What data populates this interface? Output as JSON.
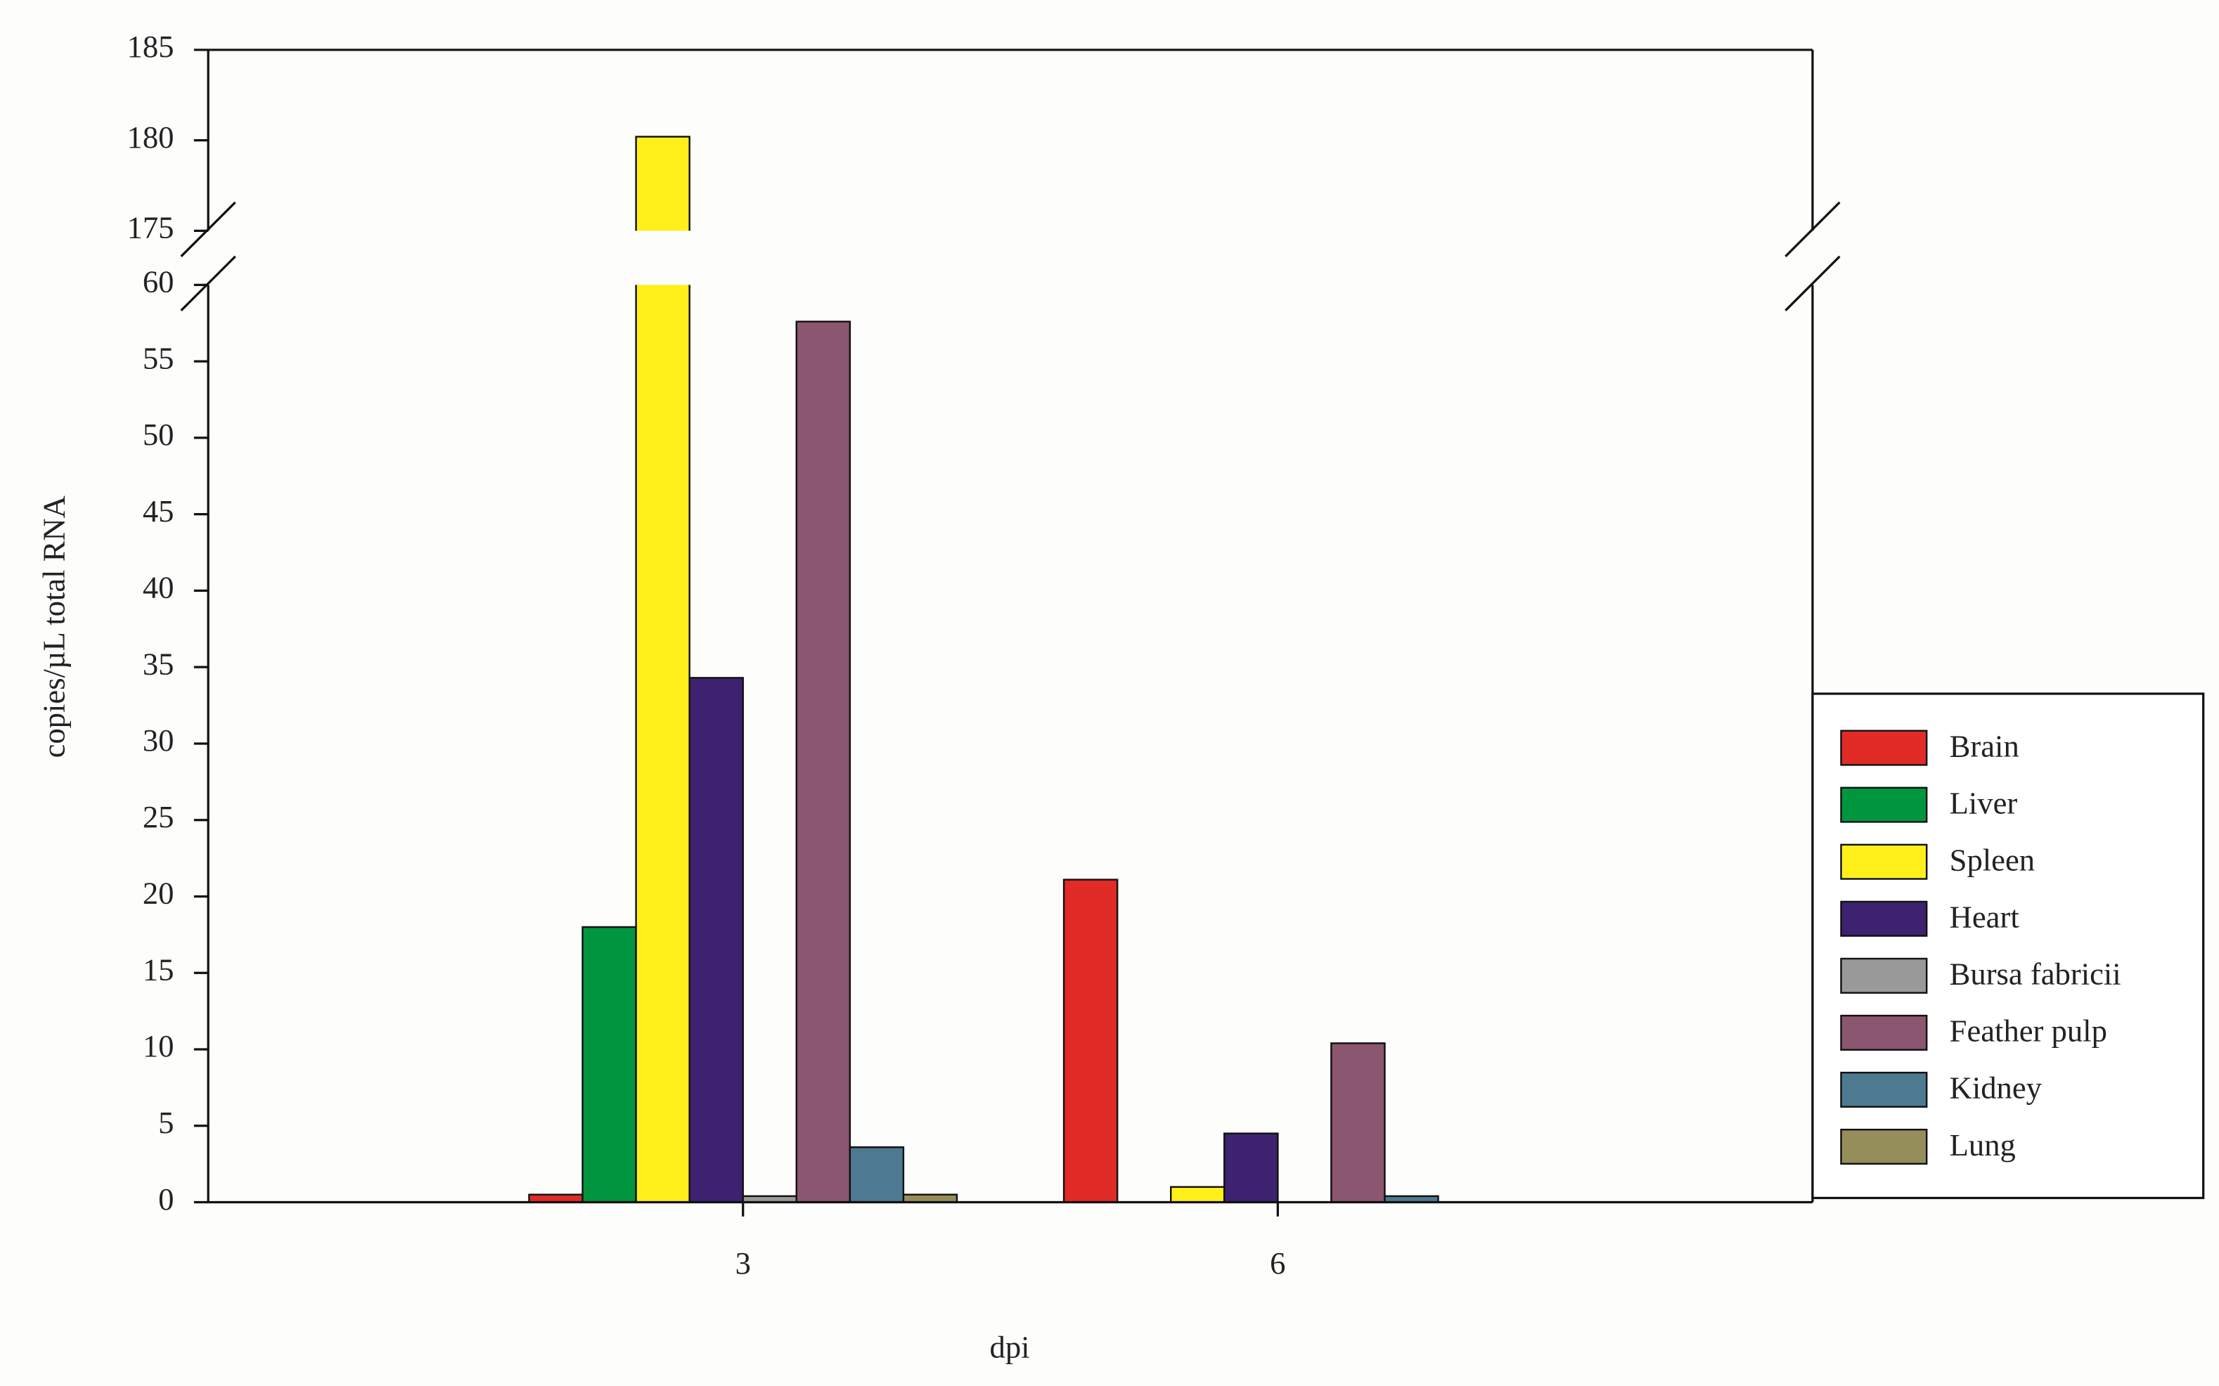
{
  "chart_data": {
    "type": "bar",
    "x_label": "dpi",
    "y_label": "copies/µL total RNA",
    "categories": [
      "3",
      "6"
    ],
    "series": [
      {
        "name": "Brain",
        "color": "#e02b27",
        "values": [
          0.5,
          21.1
        ]
      },
      {
        "name": "Liver",
        "color": "#00963f",
        "values": [
          18,
          0
        ]
      },
      {
        "name": "Spleen",
        "color": "#fff01a",
        "values": [
          180.2,
          1.0
        ]
      },
      {
        "name": "Heart",
        "color": "#3d2270",
        "values": [
          34.3,
          4.5
        ]
      },
      {
        "name": "Bursa fabricii",
        "color": "#999999",
        "values": [
          0.4,
          0
        ]
      },
      {
        "name": "Feather pulp",
        "color": "#8b5670",
        "values": [
          57.6,
          10.4
        ]
      },
      {
        "name": "Kidney",
        "color": "#4d7a91",
        "values": [
          3.6,
          0.4
        ]
      },
      {
        "name": "Lung",
        "color": "#958e5a",
        "values": [
          0.5,
          0
        ]
      }
    ],
    "ylim": [
      0,
      185
    ],
    "y_break": [
      60,
      175
    ],
    "yticks": [
      0,
      5,
      10,
      15,
      20,
      25,
      30,
      35,
      40,
      45,
      50,
      55,
      60,
      175,
      180,
      185
    ],
    "legend": "right"
  }
}
